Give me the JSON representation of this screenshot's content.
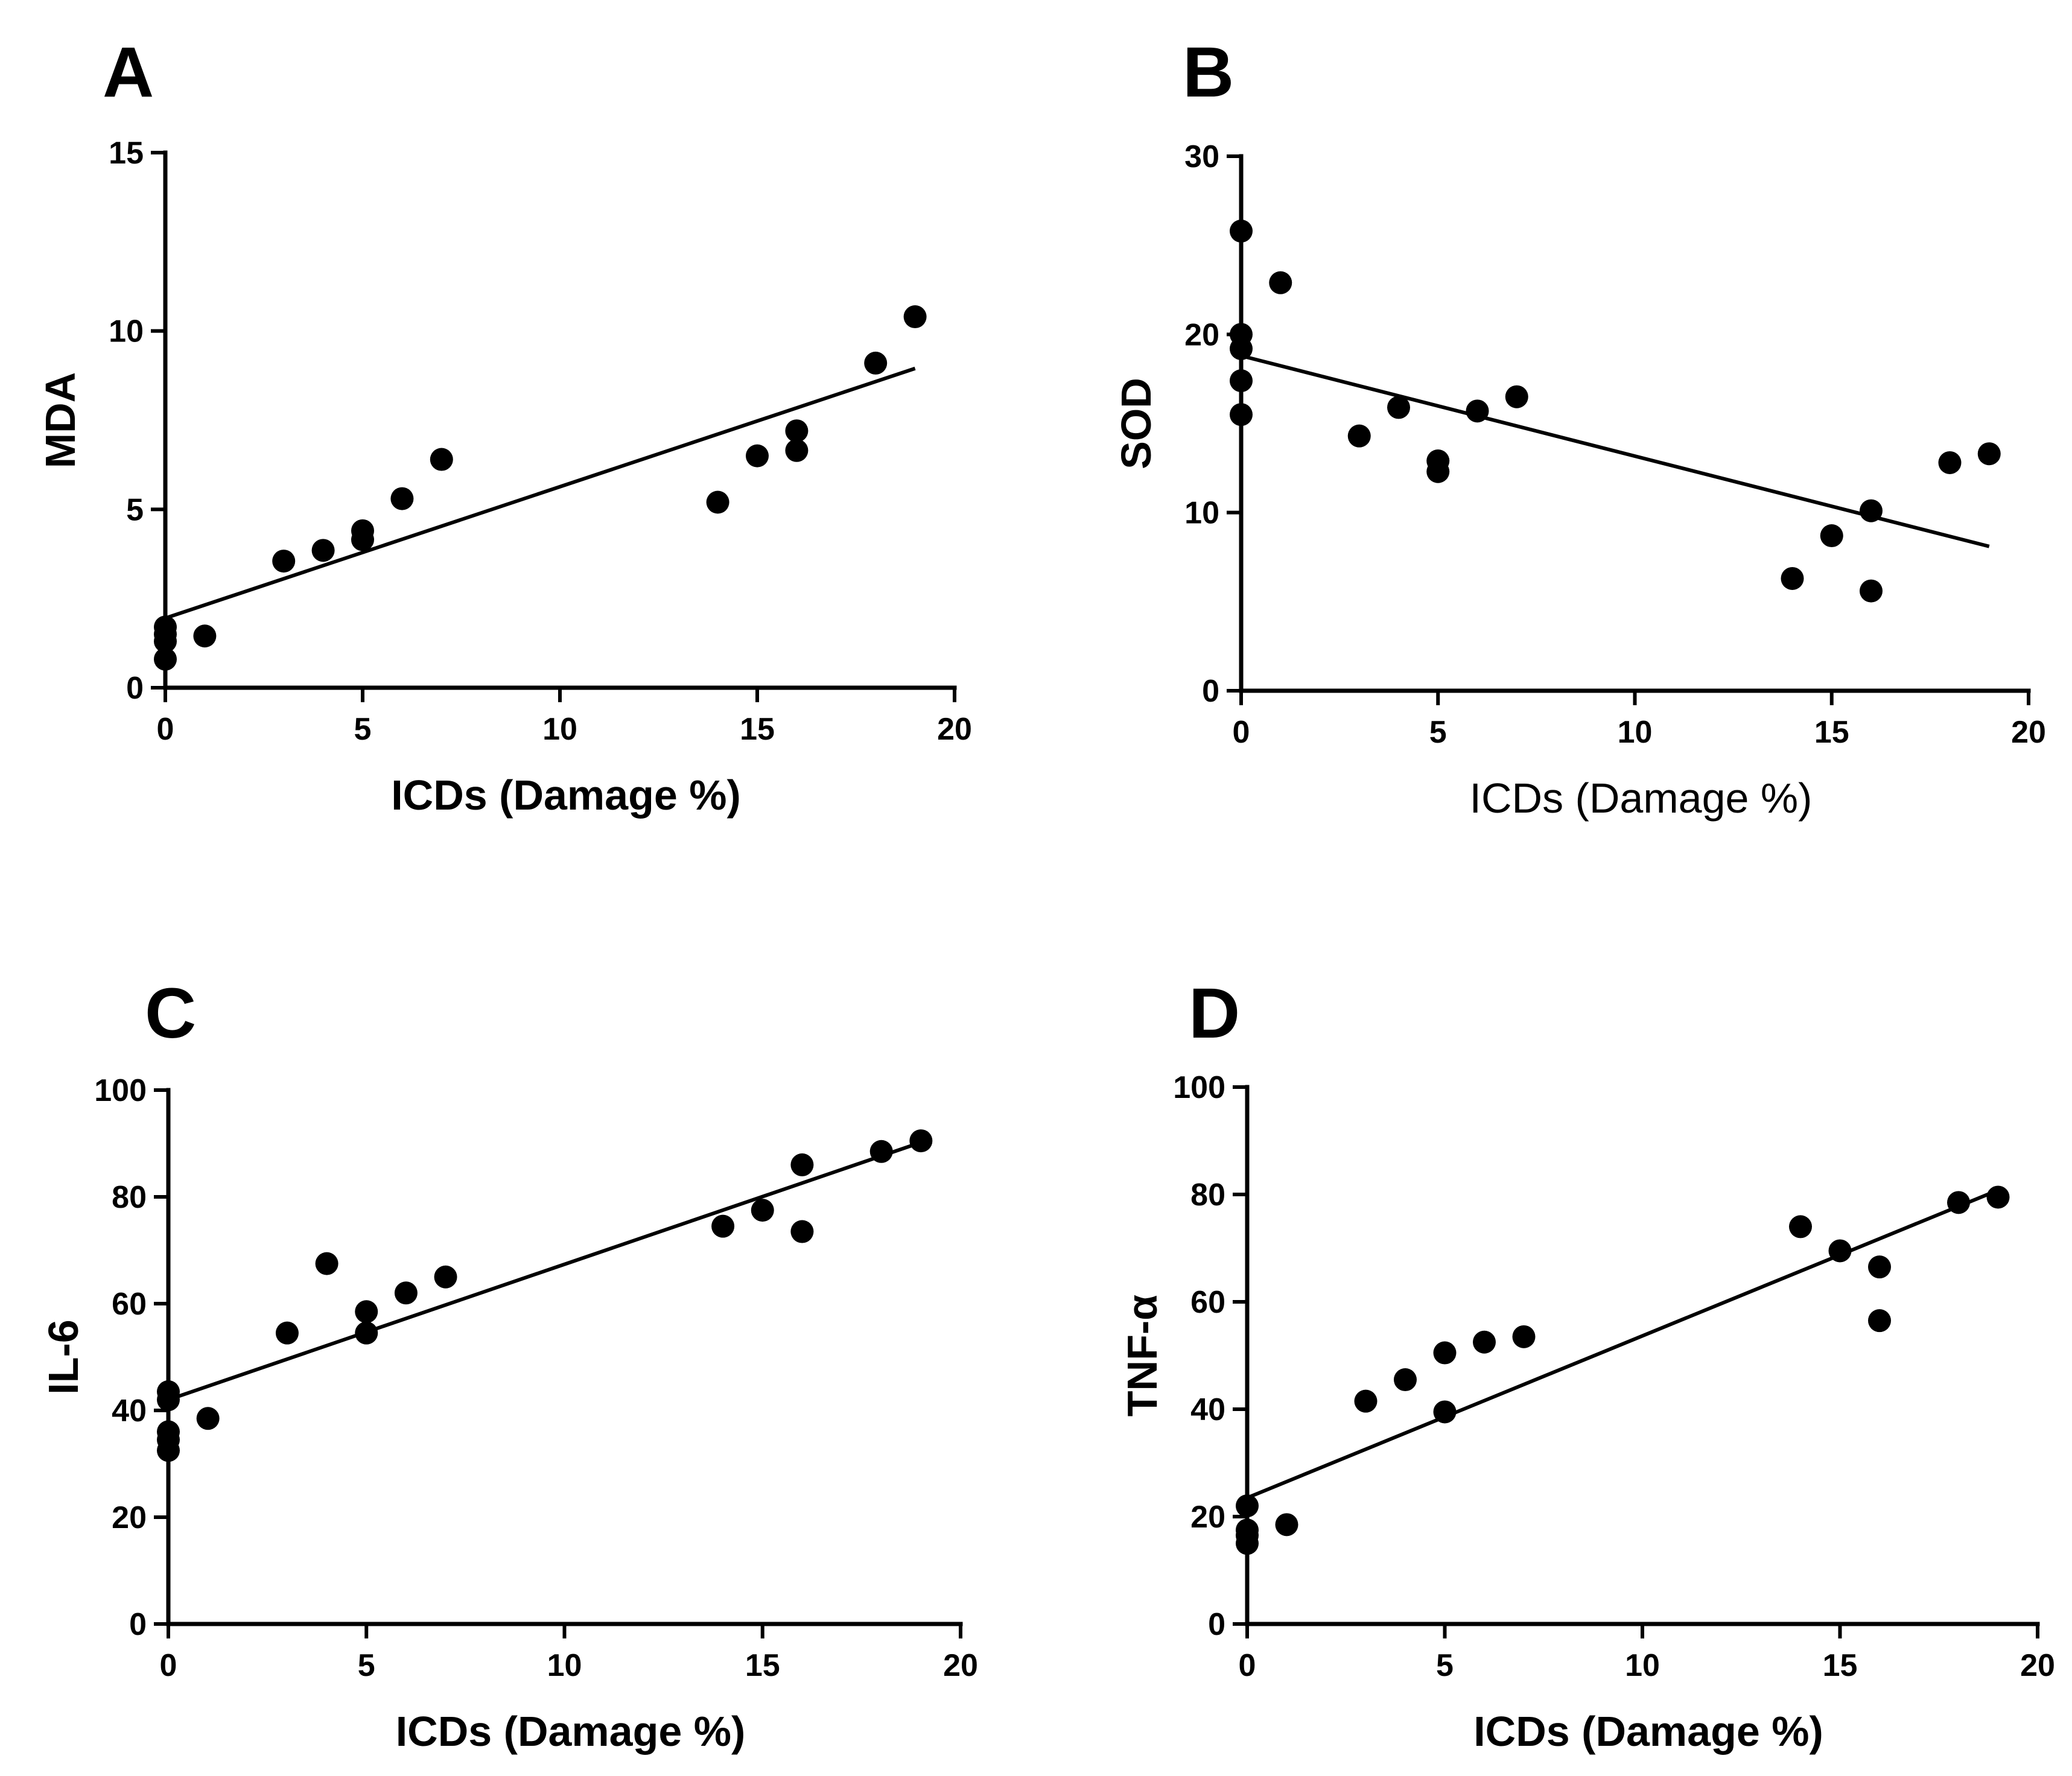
{
  "chart_data": [
    {
      "panel": "A",
      "type": "scatter",
      "xlabel": "ICDs (Damage %)",
      "ylabel": "MDA",
      "xlim": [
        0,
        20
      ],
      "ylim": [
        0,
        15
      ],
      "xticks": [
        0,
        5,
        10,
        15,
        20
      ],
      "yticks": [
        0,
        5,
        10,
        15
      ],
      "points": [
        [
          0,
          0.8
        ],
        [
          0,
          1.3
        ],
        [
          0,
          1.5
        ],
        [
          0,
          1.7
        ],
        [
          1,
          1.45
        ],
        [
          3,
          3.55
        ],
        [
          4,
          3.85
        ],
        [
          5,
          4.15
        ],
        [
          5,
          4.4
        ],
        [
          6,
          5.3
        ],
        [
          7,
          6.4
        ],
        [
          14,
          5.2
        ],
        [
          15,
          6.5
        ],
        [
          16,
          6.65
        ],
        [
          16,
          7.2
        ],
        [
          18,
          9.1
        ],
        [
          19,
          10.4
        ]
      ],
      "fit": [
        [
          0,
          1.95
        ],
        [
          19,
          8.95
        ]
      ]
    },
    {
      "panel": "B",
      "type": "scatter",
      "xlabel": "ICDs (Damage %)",
      "ylabel": "SOD",
      "xlim": [
        0,
        20
      ],
      "ylim": [
        0,
        30
      ],
      "xticks": [
        0,
        5,
        10,
        15,
        20
      ],
      "yticks": [
        0,
        10,
        20,
        30
      ],
      "points": [
        [
          0,
          25.8
        ],
        [
          0,
          20
        ],
        [
          0,
          19.2
        ],
        [
          0,
          17.4
        ],
        [
          0,
          15.5
        ],
        [
          1,
          22.9
        ],
        [
          3,
          14.3
        ],
        [
          4,
          15.9
        ],
        [
          5,
          12.9
        ],
        [
          5,
          12.3
        ],
        [
          6,
          15.7
        ],
        [
          7,
          16.5
        ],
        [
          14,
          6.3
        ],
        [
          15,
          8.7
        ],
        [
          16,
          10.1
        ],
        [
          16,
          5.6
        ],
        [
          18,
          12.8
        ],
        [
          19,
          13.3
        ]
      ],
      "fit": [
        [
          0,
          18.8
        ],
        [
          19,
          8.1
        ]
      ]
    },
    {
      "panel": "C",
      "type": "scatter",
      "xlabel": "ICDs (Damage %)",
      "ylabel": "IL-6",
      "xlim": [
        0,
        20
      ],
      "ylim": [
        0,
        100
      ],
      "xticks": [
        0,
        5,
        10,
        15,
        20
      ],
      "yticks": [
        0,
        20,
        40,
        60,
        80,
        100
      ],
      "points": [
        [
          0,
          43.5
        ],
        [
          0,
          42
        ],
        [
          0,
          36
        ],
        [
          0,
          34.5
        ],
        [
          0,
          32.5
        ],
        [
          1,
          38.5
        ],
        [
          3,
          54.5
        ],
        [
          4,
          67.5
        ],
        [
          5,
          58.5
        ],
        [
          5,
          54.5
        ],
        [
          6,
          62
        ],
        [
          7,
          65
        ],
        [
          14,
          74.5
        ],
        [
          15,
          77.5
        ],
        [
          16,
          86
        ],
        [
          16,
          73.5
        ],
        [
          18,
          88.5
        ],
        [
          19,
          90.5
        ]
      ],
      "fit": [
        [
          0,
          42
        ],
        [
          19,
          90.2
        ]
      ]
    },
    {
      "panel": "D",
      "type": "scatter",
      "xlabel": "ICDs (Damage %)",
      "ylabel": "TNF-α",
      "xlim": [
        0,
        20
      ],
      "ylim": [
        0,
        100
      ],
      "xticks": [
        0,
        5,
        10,
        15,
        20
      ],
      "yticks": [
        0,
        20,
        40,
        60,
        80,
        100
      ],
      "points": [
        [
          0,
          22
        ],
        [
          0,
          17.5
        ],
        [
          0,
          16.5
        ],
        [
          0,
          15
        ],
        [
          1,
          18.5
        ],
        [
          3,
          41.5
        ],
        [
          4,
          45.5
        ],
        [
          5,
          50.5
        ],
        [
          5,
          39.5
        ],
        [
          6,
          52.5
        ],
        [
          7,
          53.5
        ],
        [
          14,
          74
        ],
        [
          15,
          69.5
        ],
        [
          16,
          66.5
        ],
        [
          16,
          56.5
        ],
        [
          18,
          78.5
        ],
        [
          19,
          79.5
        ]
      ],
      "fit": [
        [
          0,
          23.5
        ],
        [
          19,
          80.8
        ]
      ]
    }
  ]
}
